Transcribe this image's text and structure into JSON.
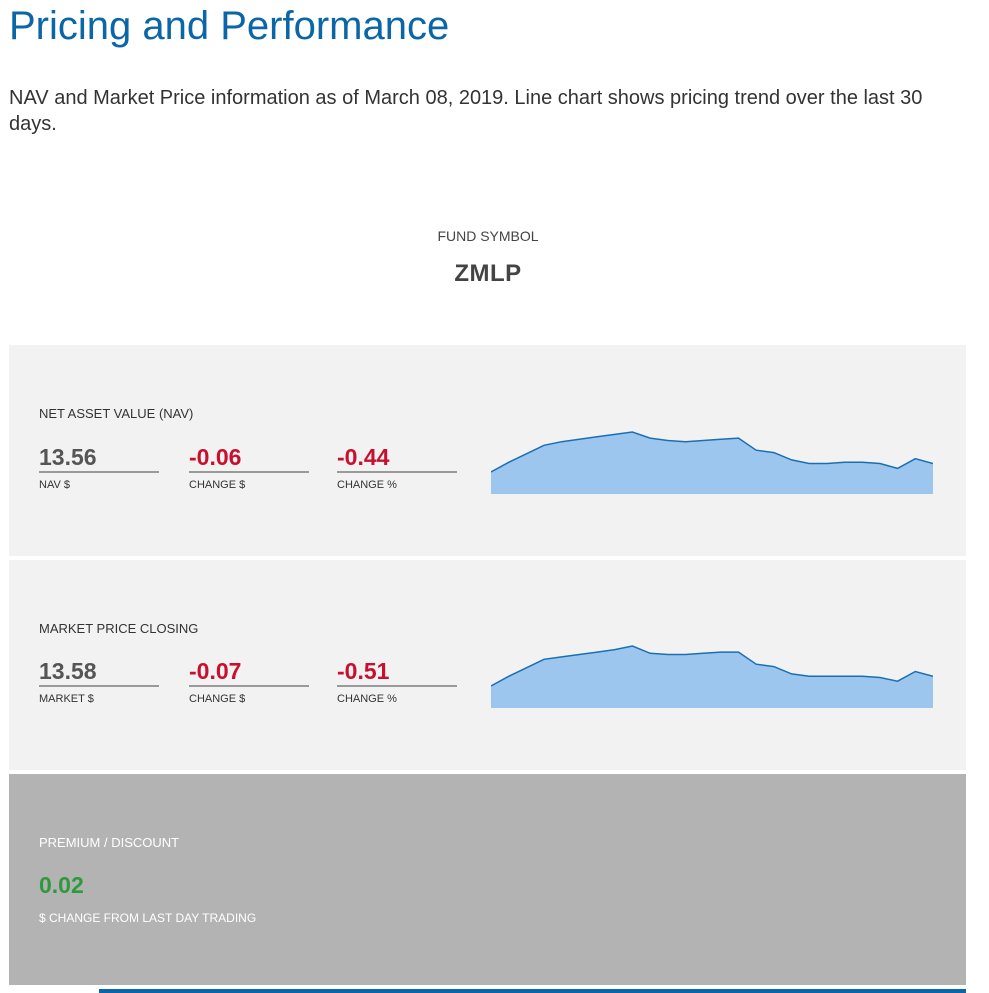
{
  "page": {
    "title": "Pricing and Performance",
    "description": "NAV and Market Price information as of March 08, 2019. Line chart shows pricing trend over the last 30 days."
  },
  "fund": {
    "symbol_label": "FUND SYMBOL",
    "symbol": "ZMLP"
  },
  "nav_section": {
    "label": "NET ASSET VALUE (NAV)",
    "value": "13.56",
    "value_label": "NAV $",
    "change": "-0.06",
    "change_label": "CHANGE $",
    "change_pct": "-0.44",
    "change_pct_label": "CHANGE %"
  },
  "market_section": {
    "label": "MARKET PRICE CLOSING",
    "value": "13.58",
    "value_label": "MARKET $",
    "change": "-0.07",
    "change_label": "CHANGE $",
    "change_pct": "-0.51",
    "change_pct_label": "CHANGE %"
  },
  "premium_section": {
    "label": "PREMIUM / DISCOUNT",
    "value": "0.02",
    "sub_label": "$ CHANGE FROM LAST DAY TRADING"
  },
  "colors": {
    "title_blue": "#0a66a6",
    "negative_red": "#c8102e",
    "positive_green": "#2e9a3c",
    "sparkline_fill": "#9dc6ee",
    "sparkline_line": "#1a6fb3"
  },
  "chart_data": [
    {
      "type": "area",
      "title": "",
      "xlabel": "",
      "ylabel": "",
      "grid": false,
      "series": [
        {
          "values": [
            13.55,
            13.63,
            13.7,
            13.77,
            13.8,
            13.82,
            13.84,
            13.86,
            13.88,
            13.83,
            13.81,
            13.8,
            13.81,
            13.82,
            13.83,
            13.73,
            13.71,
            13.65,
            13.62,
            13.62,
            13.63,
            13.63,
            13.62,
            13.58,
            13.66,
            13.62
          ]
        }
      ]
    },
    {
      "type": "area",
      "title": "",
      "xlabel": "",
      "ylabel": "",
      "grid": false,
      "series": [
        {
          "values": [
            13.56,
            13.64,
            13.71,
            13.78,
            13.8,
            13.82,
            13.84,
            13.86,
            13.89,
            13.83,
            13.82,
            13.82,
            13.83,
            13.84,
            13.84,
            13.74,
            13.72,
            13.66,
            13.64,
            13.64,
            13.64,
            13.64,
            13.63,
            13.6,
            13.68,
            13.64
          ]
        }
      ]
    }
  ]
}
